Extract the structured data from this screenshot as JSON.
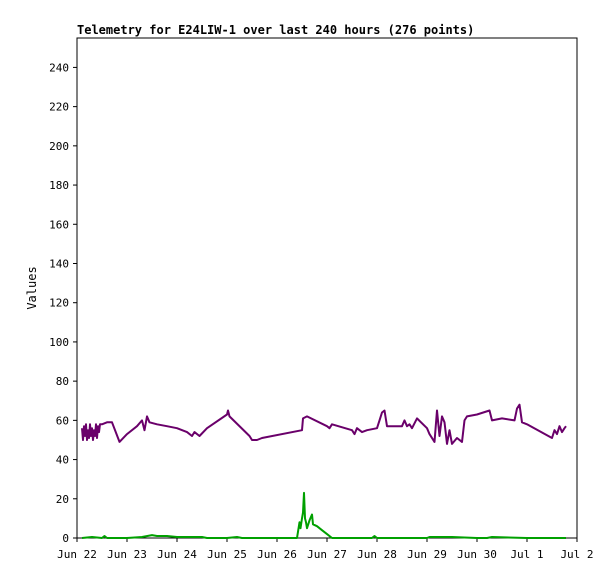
{
  "chart_data": {
    "type": "line",
    "title": "Telemetry for E24LIW-1 over last 240 hours (276 points)",
    "xlabel": "",
    "ylabel": "Values",
    "ylim": [
      0,
      255
    ],
    "yticks": [
      0,
      20,
      40,
      60,
      80,
      100,
      120,
      140,
      160,
      180,
      200,
      220,
      240
    ],
    "xlim": [
      0,
      10
    ],
    "xticks": [
      {
        "label": "Jun 22",
        "x": 0
      },
      {
        "label": "Jun 23",
        "x": 1
      },
      {
        "label": "Jun 24",
        "x": 2
      },
      {
        "label": "Jun 25",
        "x": 3
      },
      {
        "label": "Jun 26",
        "x": 4
      },
      {
        "label": "Jun 27",
        "x": 5
      },
      {
        "label": "Jun 28",
        "x": 6
      },
      {
        "label": "Jun 29",
        "x": 7
      },
      {
        "label": "Jun 30",
        "x": 8
      },
      {
        "label": "Jul 1",
        "x": 9
      },
      {
        "label": "Jul 2",
        "x": 10
      }
    ],
    "grid": false,
    "legend": "none",
    "x_unit": "days since Jun 22 00:00",
    "series": [
      {
        "color": "#6a006a",
        "points": [
          [
            0.1,
            56
          ],
          [
            0.12,
            50
          ],
          [
            0.14,
            57
          ],
          [
            0.16,
            52
          ],
          [
            0.18,
            58
          ],
          [
            0.2,
            50
          ],
          [
            0.22,
            55
          ],
          [
            0.24,
            51
          ],
          [
            0.26,
            58
          ],
          [
            0.28,
            52
          ],
          [
            0.3,
            56
          ],
          [
            0.32,
            50
          ],
          [
            0.34,
            55
          ],
          [
            0.36,
            52
          ],
          [
            0.38,
            58
          ],
          [
            0.4,
            51
          ],
          [
            0.42,
            57
          ],
          [
            0.44,
            54
          ],
          [
            0.46,
            58
          ],
          [
            0.5,
            58
          ],
          [
            0.6,
            59
          ],
          [
            0.7,
            59
          ],
          [
            0.85,
            49
          ],
          [
            1.0,
            53
          ],
          [
            1.2,
            57
          ],
          [
            1.3,
            60
          ],
          [
            1.35,
            55
          ],
          [
            1.4,
            62
          ],
          [
            1.45,
            59
          ],
          [
            1.6,
            58
          ],
          [
            1.8,
            57
          ],
          [
            2.0,
            56
          ],
          [
            2.2,
            54
          ],
          [
            2.3,
            52
          ],
          [
            2.35,
            54
          ],
          [
            2.45,
            52
          ],
          [
            2.6,
            56
          ],
          [
            3.0,
            63
          ],
          [
            3.02,
            65
          ],
          [
            3.05,
            62
          ],
          [
            3.45,
            52
          ],
          [
            3.5,
            50
          ],
          [
            3.6,
            50
          ],
          [
            3.7,
            51
          ],
          [
            4.5,
            55
          ],
          [
            4.52,
            61
          ],
          [
            4.6,
            62
          ],
          [
            5.0,
            57
          ],
          [
            5.05,
            56
          ],
          [
            5.1,
            58
          ],
          [
            5.5,
            55
          ],
          [
            5.55,
            53
          ],
          [
            5.6,
            56
          ],
          [
            5.7,
            54
          ],
          [
            5.8,
            55
          ],
          [
            6.0,
            56
          ],
          [
            6.05,
            60
          ],
          [
            6.1,
            64
          ],
          [
            6.15,
            65
          ],
          [
            6.2,
            57
          ],
          [
            6.5,
            57
          ],
          [
            6.55,
            60
          ],
          [
            6.6,
            57
          ],
          [
            6.65,
            58
          ],
          [
            6.7,
            56
          ],
          [
            6.8,
            61
          ],
          [
            7.0,
            56
          ],
          [
            7.05,
            53
          ],
          [
            7.15,
            49
          ],
          [
            7.2,
            65
          ],
          [
            7.25,
            52
          ],
          [
            7.3,
            62
          ],
          [
            7.35,
            59
          ],
          [
            7.4,
            48
          ],
          [
            7.45,
            55
          ],
          [
            7.5,
            48
          ],
          [
            7.6,
            51
          ],
          [
            7.7,
            49
          ],
          [
            7.75,
            60
          ],
          [
            7.8,
            62
          ],
          [
            8.0,
            63
          ],
          [
            8.25,
            65
          ],
          [
            8.3,
            60
          ],
          [
            8.5,
            61
          ],
          [
            8.75,
            60
          ],
          [
            8.8,
            66
          ],
          [
            8.85,
            68
          ],
          [
            8.9,
            59
          ],
          [
            9.0,
            58
          ],
          [
            9.5,
            51
          ],
          [
            9.55,
            55
          ],
          [
            9.6,
            53
          ],
          [
            9.65,
            57
          ],
          [
            9.7,
            54
          ],
          [
            9.75,
            56
          ],
          [
            9.78,
            57
          ]
        ]
      },
      {
        "color": "#00a000",
        "points": [
          [
            0.1,
            0
          ],
          [
            0.3,
            0.5
          ],
          [
            0.5,
            0
          ],
          [
            0.55,
            1
          ],
          [
            0.6,
            0
          ],
          [
            1.0,
            0
          ],
          [
            1.3,
            0.5
          ],
          [
            1.5,
            1.5
          ],
          [
            1.6,
            1
          ],
          [
            1.8,
            1
          ],
          [
            2.0,
            0.5
          ],
          [
            2.5,
            0.5
          ],
          [
            2.6,
            0
          ],
          [
            3.0,
            0
          ],
          [
            3.2,
            0.5
          ],
          [
            3.3,
            0
          ],
          [
            4.0,
            0
          ],
          [
            4.4,
            0
          ],
          [
            4.45,
            8
          ],
          [
            4.47,
            5
          ],
          [
            4.5,
            10
          ],
          [
            4.52,
            13
          ],
          [
            4.54,
            23
          ],
          [
            4.56,
            10
          ],
          [
            4.58,
            8
          ],
          [
            4.6,
            5
          ],
          [
            4.65,
            9
          ],
          [
            4.7,
            12
          ],
          [
            4.72,
            7
          ],
          [
            4.8,
            6
          ],
          [
            4.9,
            4
          ],
          [
            5.0,
            2
          ],
          [
            5.1,
            0
          ],
          [
            5.5,
            0
          ],
          [
            5.9,
            0
          ],
          [
            5.95,
            1
          ],
          [
            6.0,
            0
          ],
          [
            7.0,
            0
          ],
          [
            7.05,
            0.5
          ],
          [
            7.5,
            0.5
          ],
          [
            8.0,
            0
          ],
          [
            8.2,
            0
          ],
          [
            8.3,
            0.5
          ],
          [
            9.0,
            0
          ],
          [
            9.5,
            0
          ],
          [
            9.78,
            0
          ]
        ]
      }
    ]
  }
}
